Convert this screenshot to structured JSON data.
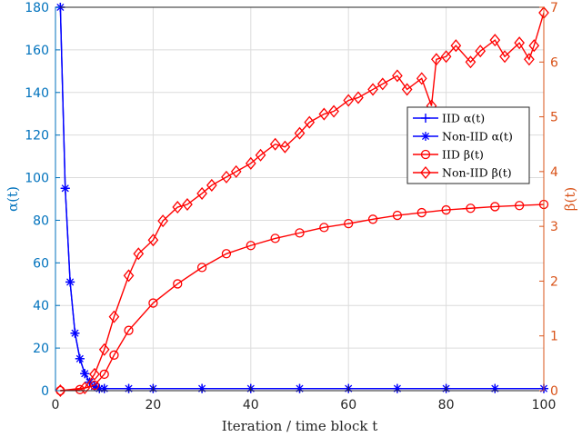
{
  "chart_data": {
    "type": "line",
    "xlabel": "Iteration / time block t",
    "ylabel_left": "α(t)",
    "ylabel_right": "β(t)",
    "xlim": [
      0,
      100
    ],
    "ylim_left": [
      0,
      180
    ],
    "ylim_right": [
      0,
      7
    ],
    "x_ticks": [
      0,
      20,
      40,
      60,
      80,
      100
    ],
    "y_ticks_left": [
      0,
      20,
      40,
      60,
      80,
      100,
      120,
      140,
      160,
      180
    ],
    "y_ticks_right": [
      0,
      1,
      2,
      3,
      4,
      5,
      6,
      7
    ],
    "grid": true,
    "legend_position": "right, mid-upper",
    "colors": {
      "left_axis": "#0072BD",
      "right_axis": "#D95319",
      "blue_series": "#0000FF",
      "red_series": "#FF0000"
    },
    "series": [
      {
        "name": "IID α(t)",
        "axis": "left",
        "marker": "plus",
        "color": "#0000FF",
        "x": [
          1,
          2,
          3,
          4,
          5,
          6,
          7,
          8,
          9,
          10,
          15,
          20,
          30,
          40,
          50,
          60,
          70,
          80,
          90,
          100
        ],
        "y": [
          180,
          95,
          51,
          27,
          15,
          8,
          4,
          2,
          1,
          1,
          1,
          1,
          1,
          1,
          1,
          1,
          1,
          1,
          1,
          1
        ]
      },
      {
        "name": "Non-IID α(t)",
        "axis": "left",
        "marker": "asterisk",
        "color": "#0000FF",
        "x": [
          1,
          2,
          3,
          4,
          5,
          6,
          7,
          8,
          9,
          10,
          15,
          20,
          30,
          40,
          50,
          60,
          70,
          80,
          90,
          100
        ],
        "y": [
          180,
          95,
          51,
          27,
          15,
          8,
          4,
          2,
          1,
          1,
          1,
          1,
          1,
          1,
          1,
          1,
          1,
          1,
          1,
          1
        ]
      },
      {
        "name": "IID β(t)",
        "axis": "right",
        "marker": "circle",
        "color": "#FF0000",
        "x": [
          1,
          5,
          8,
          10,
          12,
          15,
          20,
          25,
          30,
          35,
          40,
          45,
          50,
          55,
          60,
          65,
          70,
          75,
          80,
          85,
          90,
          95,
          100
        ],
        "y": [
          0,
          0.02,
          0.1,
          0.3,
          0.65,
          1.1,
          1.6,
          1.95,
          2.25,
          2.5,
          2.65,
          2.78,
          2.88,
          2.98,
          3.05,
          3.13,
          3.2,
          3.25,
          3.3,
          3.33,
          3.36,
          3.38,
          3.4
        ]
      },
      {
        "name": "Non-IID β(t)",
        "axis": "right",
        "marker": "diamond",
        "color": "#FF0000",
        "x": [
          1,
          6,
          8,
          10,
          12,
          15,
          17,
          20,
          22,
          25,
          27,
          30,
          32,
          35,
          37,
          40,
          42,
          45,
          47,
          50,
          52,
          55,
          57,
          60,
          62,
          65,
          67,
          70,
          72,
          75,
          77,
          78,
          80,
          82,
          85,
          87,
          90,
          92,
          95,
          97,
          98,
          100
        ],
        "y": [
          0,
          0.05,
          0.3,
          0.75,
          1.35,
          2.1,
          2.5,
          2.75,
          3.1,
          3.35,
          3.4,
          3.6,
          3.75,
          3.9,
          4.0,
          4.15,
          4.3,
          4.5,
          4.45,
          4.7,
          4.9,
          5.05,
          5.1,
          5.3,
          5.35,
          5.5,
          5.6,
          5.75,
          5.5,
          5.7,
          5.2,
          6.05,
          6.1,
          6.3,
          6.0,
          6.2,
          6.4,
          6.1,
          6.35,
          6.05,
          6.3,
          6.9
        ]
      }
    ]
  }
}
